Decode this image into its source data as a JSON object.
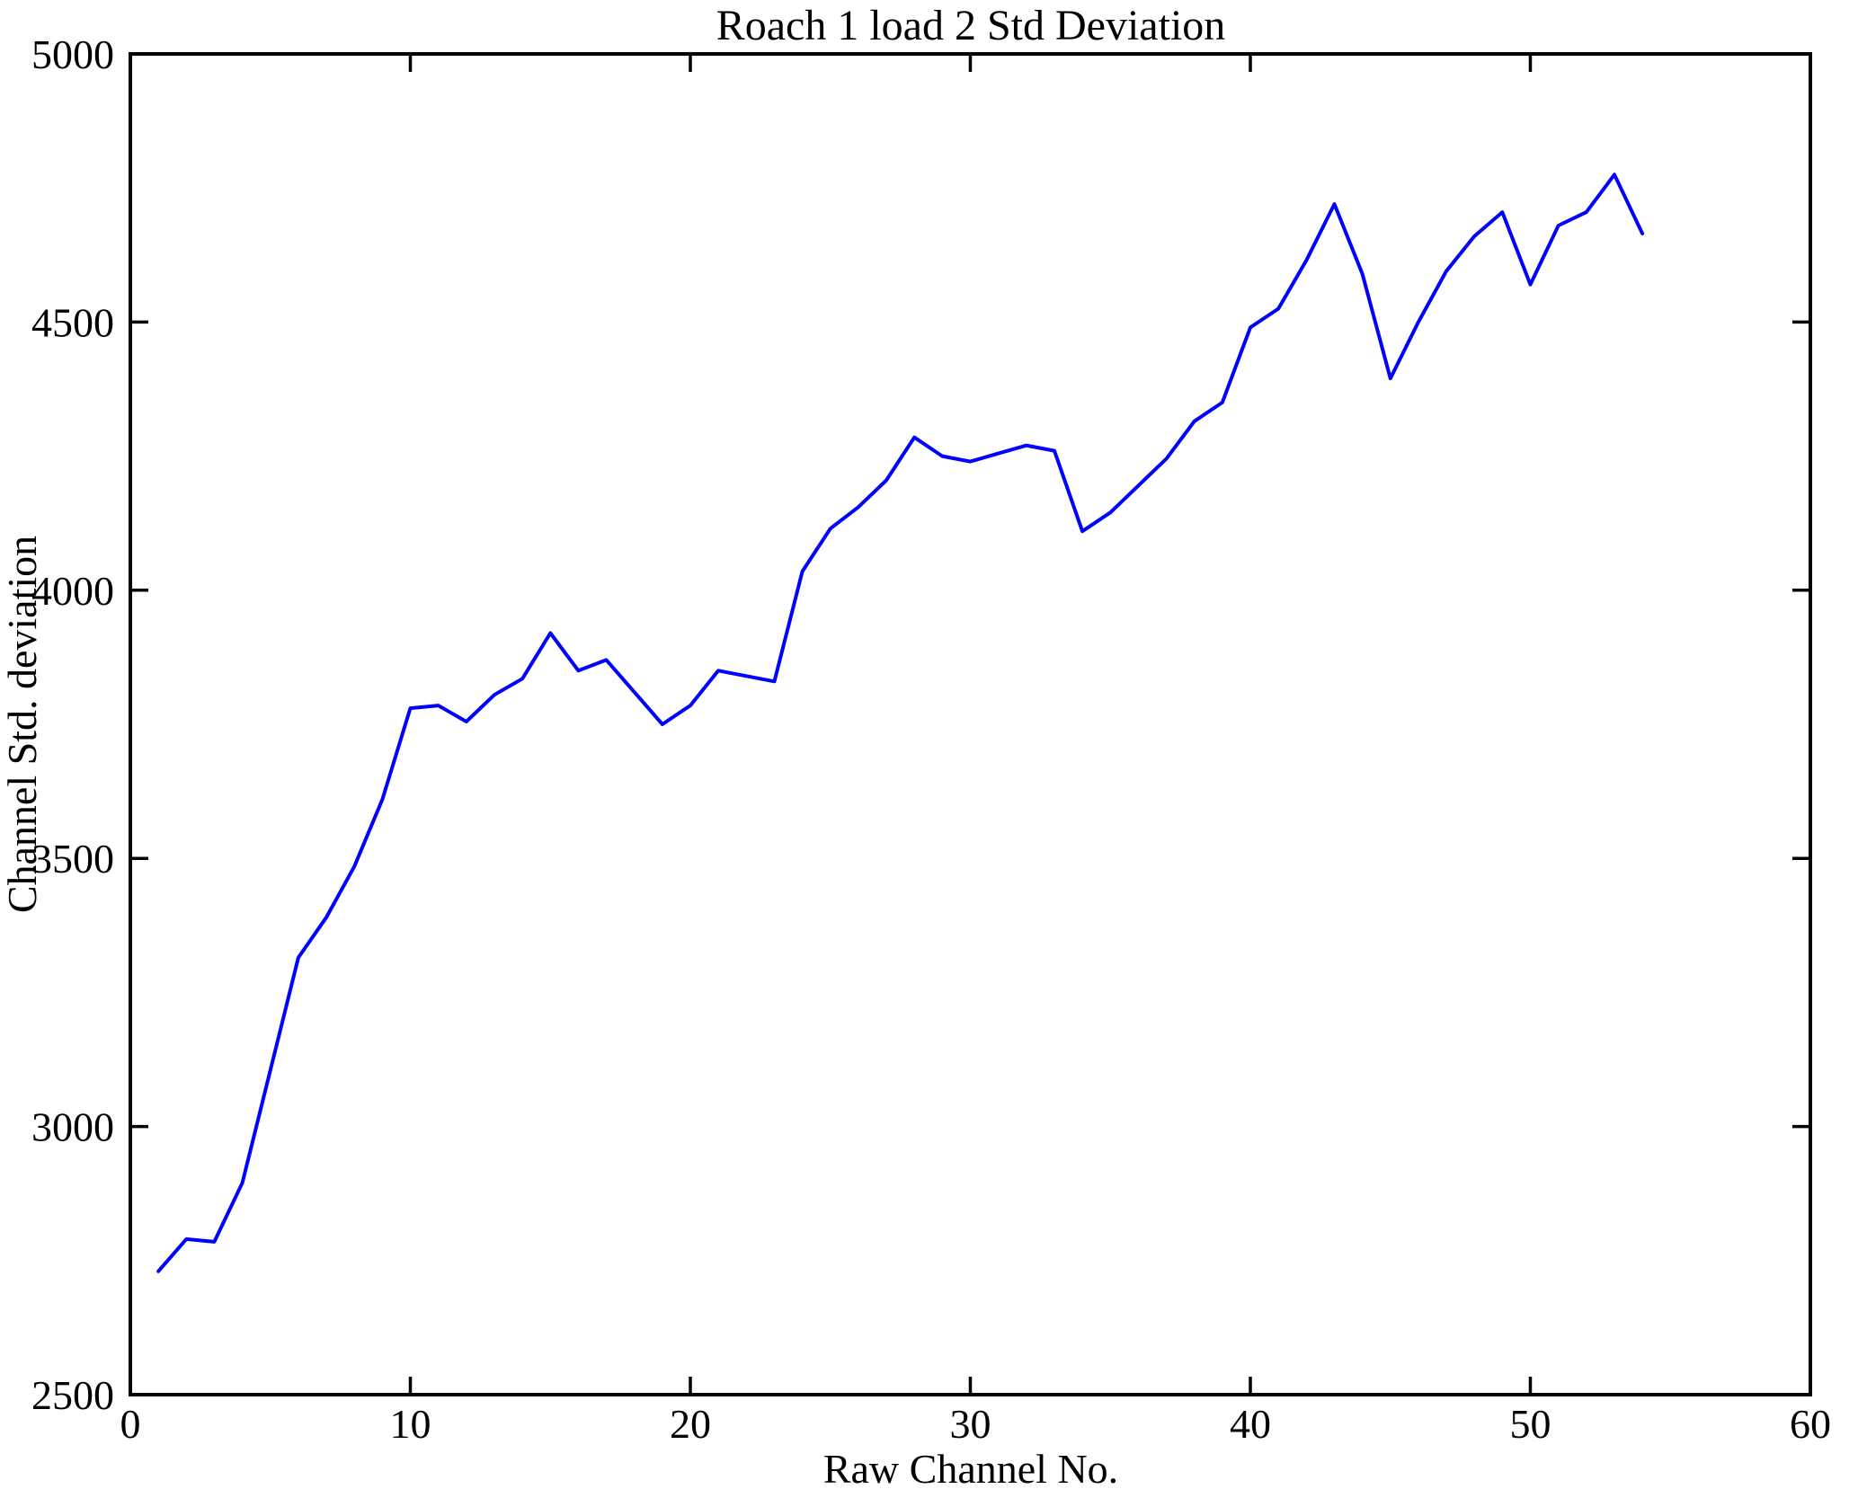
{
  "figure": {
    "title": "Roach 1 load 2 Std Deviation",
    "xlabel": "Raw Channel No.",
    "ylabel": "Channel Std. deviation"
  },
  "chart_data": {
    "type": "line",
    "title": "Roach 1 load 2 Std Deviation",
    "xlabel": "Raw Channel No.",
    "ylabel": "Channel Std. deviation",
    "xlim": [
      0,
      60
    ],
    "ylim": [
      2500,
      5000
    ],
    "xticks": [
      "0",
      "10",
      "20",
      "30",
      "40",
      "50",
      "60"
    ],
    "yticks": [
      "2500",
      "3000",
      "3500",
      "4000",
      "4500",
      "5000"
    ],
    "grid": false,
    "legend": null,
    "line_color": "#0000FF",
    "axis_color": "#000000",
    "background_color": "#FFFFFF",
    "x": [
      1,
      2,
      3,
      4,
      5,
      6,
      7,
      8,
      9,
      10,
      11,
      12,
      13,
      14,
      15,
      16,
      17,
      18,
      19,
      20,
      21,
      22,
      23,
      24,
      25,
      26,
      27,
      28,
      29,
      30,
      31,
      32,
      33,
      34,
      35,
      36,
      37,
      38,
      39,
      40,
      41,
      42,
      43,
      44,
      45,
      46,
      47,
      48,
      49,
      50,
      51,
      52,
      53,
      54
    ],
    "values": [
      2730,
      2790,
      2785,
      2895,
      3105,
      3315,
      3390,
      3485,
      3610,
      3780,
      3785,
      3755,
      3805,
      3835,
      3920,
      3850,
      3870,
      3810,
      3750,
      3785,
      3850,
      3840,
      3830,
      4035,
      4115,
      4155,
      4205,
      4285,
      4250,
      4240,
      4255,
      4270,
      4260,
      4110,
      4145,
      4195,
      4245,
      4315,
      4350,
      4490,
      4525,
      4615,
      4720,
      4590,
      4395,
      4500,
      4595,
      4660,
      4705,
      4570,
      4680,
      4705,
      4775,
      4665
    ]
  }
}
